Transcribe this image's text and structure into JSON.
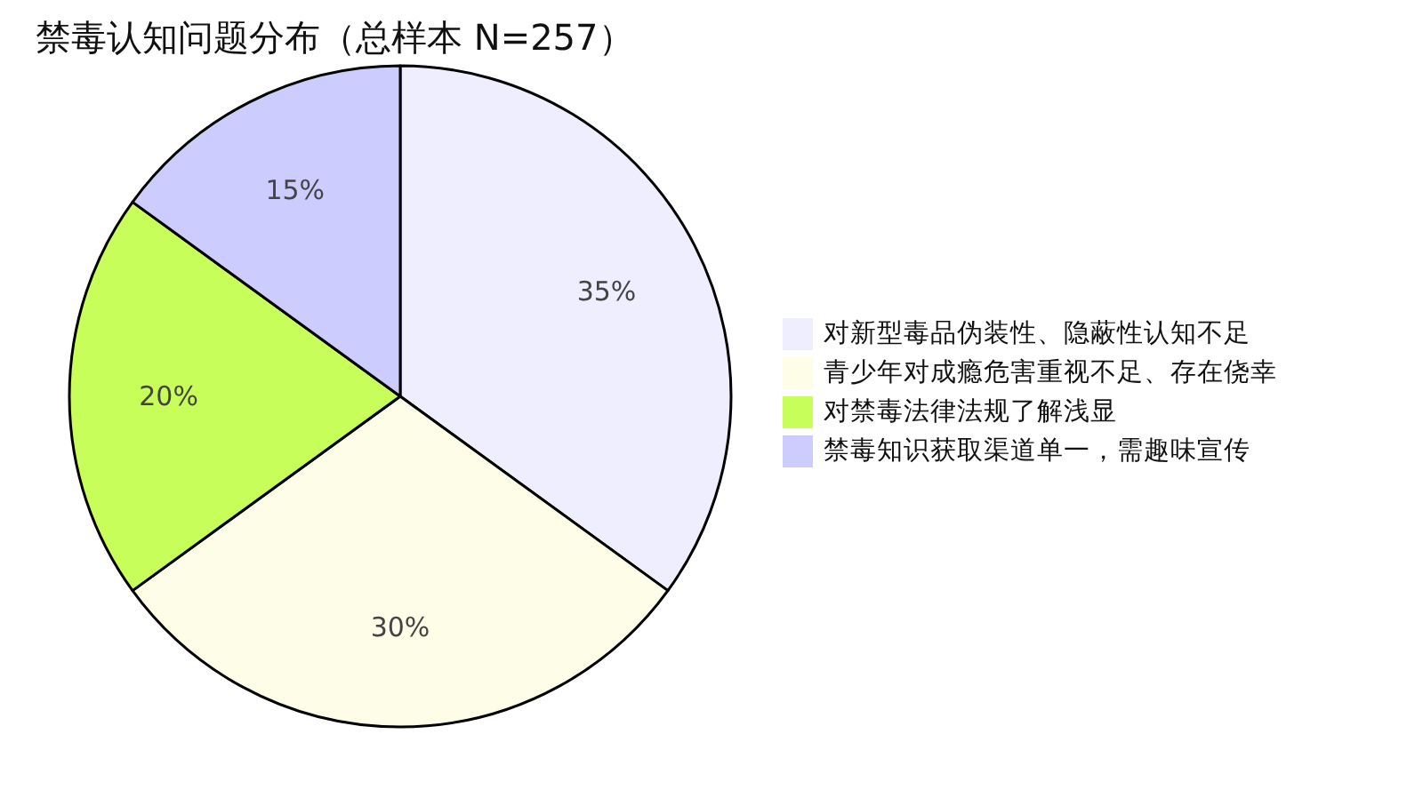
{
  "chart_data": {
    "type": "pie",
    "title": "禁毒认知问题分布（总样本 N=257）",
    "categories": [
      "对新型毒品伪装性、隐蔽性认知不足",
      "青少年对成瘾危害重视不足、存在侥幸",
      "对禁毒法律法规了解浅显",
      "禁毒知识获取渠道单一，需趣味宣传"
    ],
    "values": [
      35,
      30,
      20,
      15
    ],
    "value_labels": [
      "35%",
      "30%",
      "20%",
      "15%"
    ],
    "colors": [
      "#eeeefe",
      "#fefee8",
      "#c8fe5a",
      "#ccccfe"
    ],
    "legend": "right"
  }
}
